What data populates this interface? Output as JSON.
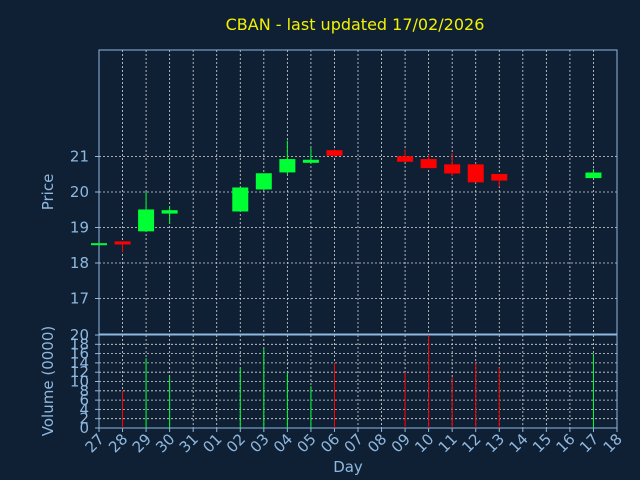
{
  "chart_data": {
    "type": "candlestick",
    "title": "CBAN - last updated 17/02/2026",
    "xlabel": "Day",
    "price_panel": {
      "ylabel": "Price",
      "ylim": [
        16,
        24
      ],
      "yticks": [
        17,
        18,
        19,
        20,
        21
      ]
    },
    "volume_panel": {
      "ylabel": "Volume (0000)",
      "ylim": [
        0,
        20
      ],
      "yticks": [
        0,
        2,
        4,
        6,
        8,
        10,
        12,
        14,
        16,
        18,
        20
      ]
    },
    "x_ticks": [
      "27",
      "28",
      "29",
      "30",
      "31",
      "01",
      "02",
      "03",
      "04",
      "05",
      "06",
      "07",
      "08",
      "09",
      "10",
      "11",
      "12",
      "13",
      "14",
      "15",
      "16",
      "17",
      "18"
    ],
    "candles": [
      {
        "day": "27",
        "open": 18.53,
        "high": 18.56,
        "low": 18.5,
        "close": 18.53,
        "volume": 0
      },
      {
        "day": "28",
        "open": 18.58,
        "high": 18.6,
        "low": 18.3,
        "close": 18.55,
        "volume": 8
      },
      {
        "day": "29",
        "open": 18.92,
        "high": 20.0,
        "low": 18.88,
        "close": 19.48,
        "volume": 15
      },
      {
        "day": "30",
        "open": 19.42,
        "high": 19.6,
        "low": 19.1,
        "close": 19.46,
        "volume": 11
      },
      {
        "day": "02",
        "open": 19.48,
        "high": 20.1,
        "low": 19.45,
        "close": 20.1,
        "volume": 13
      },
      {
        "day": "03",
        "open": 20.1,
        "high": 20.5,
        "low": 20.05,
        "close": 20.5,
        "volume": 17
      },
      {
        "day": "04",
        "open": 20.58,
        "high": 21.45,
        "low": 20.5,
        "close": 20.9,
        "volume": 12
      },
      {
        "day": "05",
        "open": 20.85,
        "high": 21.25,
        "low": 20.8,
        "close": 20.88,
        "volume": 9
      },
      {
        "day": "06",
        "open": 21.15,
        "high": 21.2,
        "low": 21.0,
        "close": 21.05,
        "volume": 14
      },
      {
        "day": "09",
        "open": 20.98,
        "high": 21.2,
        "low": 20.85,
        "close": 20.88,
        "volume": 12
      },
      {
        "day": "10",
        "open": 20.9,
        "high": 21.05,
        "low": 20.7,
        "close": 20.7,
        "volume": 20
      },
      {
        "day": "11",
        "open": 20.75,
        "high": 21.1,
        "low": 20.45,
        "close": 20.55,
        "volume": 11
      },
      {
        "day": "12",
        "open": 20.75,
        "high": 20.8,
        "low": 20.3,
        "close": 20.3,
        "volume": 14
      },
      {
        "day": "13",
        "open": 20.48,
        "high": 20.5,
        "low": 20.15,
        "close": 20.35,
        "volume": 13
      },
      {
        "day": "17",
        "open": 20.42,
        "high": 20.65,
        "low": 20.4,
        "close": 20.52,
        "volume": 16
      }
    ],
    "up_color": "#00ff33",
    "down_color": "#ff0000",
    "grid": true
  }
}
